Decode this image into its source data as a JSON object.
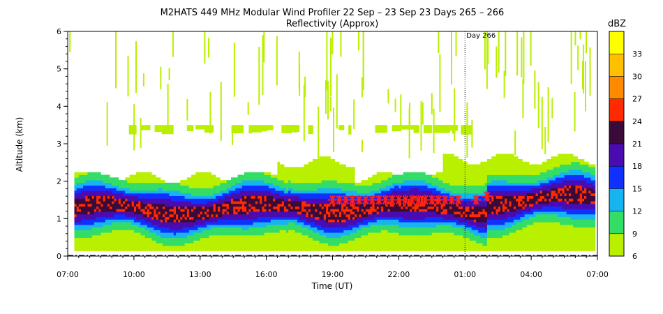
{
  "chart_data": {
    "type": "heatmap",
    "title": "M2HATS 449 MHz Modular Wind Profiler  22 Sep – 23 Sep 23 Days 265 – 266",
    "subtitle": "Reflectivity (Approx)",
    "xlabel": "Time (UT)",
    "ylabel": "Altitude (km)",
    "x_tick_labels": [
      "07:00",
      "10:00",
      "13:00",
      "16:00",
      "19:00",
      "22:00",
      "01:00",
      "04:00",
      "07:00"
    ],
    "xlim_hours": [
      0,
      24
    ],
    "y_ticks": [
      0,
      1,
      2,
      3,
      4,
      5,
      6
    ],
    "ylim": [
      0,
      6
    ],
    "day_marker": {
      "label": "Day 266",
      "hours_since_start": 18
    },
    "colorbar": {
      "unit": "dBZ",
      "levels": [
        6,
        9,
        12,
        15,
        18,
        21,
        24,
        27,
        30,
        33
      ],
      "colors": [
        "#b8f000",
        "#33dd66",
        "#18b4f0",
        "#1030ff",
        "#4a0cb0",
        "#3a0a3a",
        "#ff2a00",
        "#ff8a00",
        "#ffc000",
        "#ffff00"
      ]
    },
    "markers": {
      "symbol": "*",
      "color": "#ff2020",
      "points": [
        {
          "x": 12.0,
          "y": 1.5
        },
        {
          "x": 12.3,
          "y": 1.5
        },
        {
          "x": 12.6,
          "y": 1.5
        },
        {
          "x": 12.9,
          "y": 1.5
        },
        {
          "x": 13.2,
          "y": 1.5
        },
        {
          "x": 13.5,
          "y": 1.5
        },
        {
          "x": 13.8,
          "y": 1.5
        },
        {
          "x": 14.1,
          "y": 1.5
        },
        {
          "x": 14.4,
          "y": 1.5
        },
        {
          "x": 14.7,
          "y": 1.5
        },
        {
          "x": 15.0,
          "y": 1.5
        },
        {
          "x": 15.3,
          "y": 1.5
        },
        {
          "x": 15.6,
          "y": 1.5
        },
        {
          "x": 15.9,
          "y": 1.5
        },
        {
          "x": 16.2,
          "y": 1.5
        },
        {
          "x": 16.5,
          "y": 1.5
        },
        {
          "x": 16.8,
          "y": 1.5
        },
        {
          "x": 17.1,
          "y": 1.5
        },
        {
          "x": 17.4,
          "y": 1.5
        },
        {
          "x": 17.7,
          "y": 1.5
        },
        {
          "x": 18.5,
          "y": 1.5
        },
        {
          "x": 19.0,
          "y": 1.6
        }
      ]
    }
  }
}
